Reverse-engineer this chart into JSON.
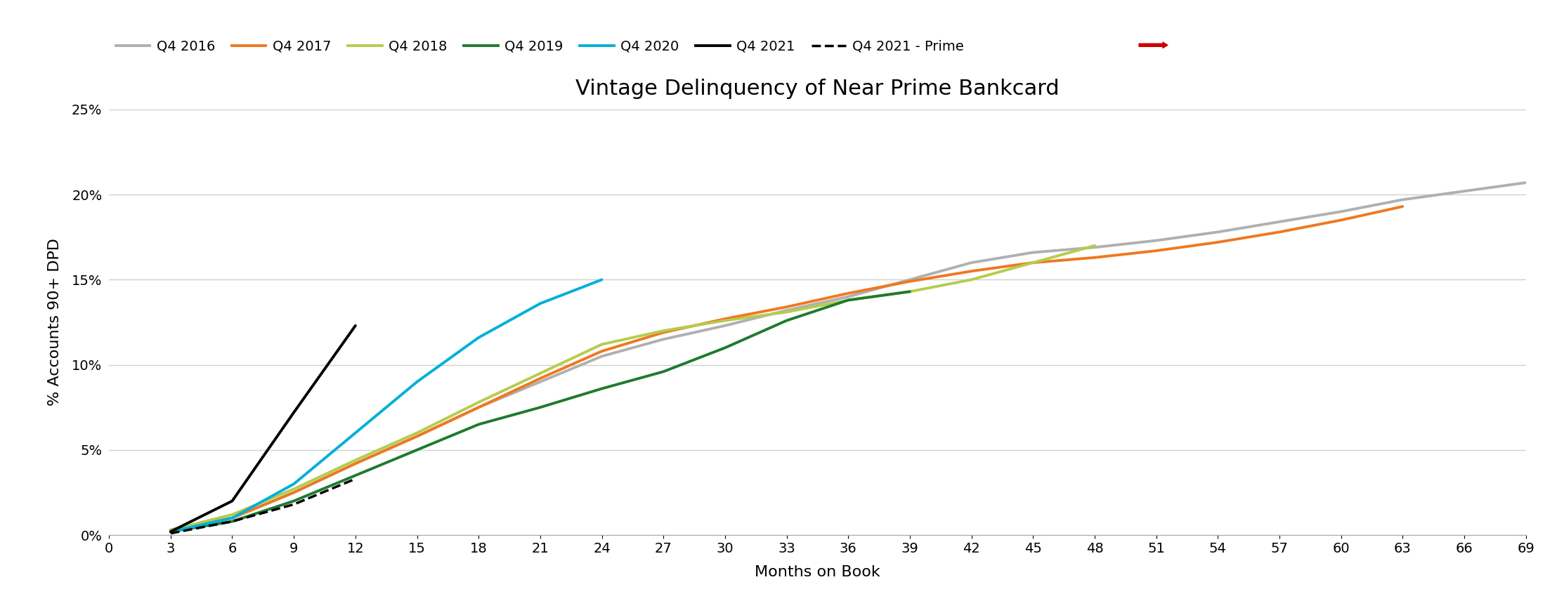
{
  "title": "Vintage Delinquency of Near Prime Bankcard",
  "xlabel": "Months on Book",
  "ylabel": "% Accounts 90+ DPD",
  "xlim": [
    0,
    69
  ],
  "ylim": [
    0,
    0.25
  ],
  "xticks": [
    0,
    3,
    6,
    9,
    12,
    15,
    18,
    21,
    24,
    27,
    30,
    33,
    36,
    39,
    42,
    45,
    48,
    51,
    54,
    57,
    60,
    63,
    66,
    69
  ],
  "yticks": [
    0,
    0.05,
    0.1,
    0.15,
    0.2,
    0.25
  ],
  "ytick_labels": [
    "0%",
    "5%",
    "10%",
    "15%",
    "20%",
    "25%"
  ],
  "series": {
    "Q4 2016": {
      "color": "#b0b0b0",
      "linestyle": "solid",
      "linewidth": 2.8,
      "x": [
        3,
        6,
        9,
        12,
        15,
        18,
        21,
        24,
        27,
        30,
        33,
        36,
        39,
        42,
        45,
        48,
        51,
        54,
        57,
        60,
        63,
        66,
        69
      ],
      "y": [
        0.003,
        0.01,
        0.025,
        0.042,
        0.058,
        0.075,
        0.09,
        0.105,
        0.115,
        0.123,
        0.132,
        0.14,
        0.15,
        0.16,
        0.166,
        0.169,
        0.173,
        0.178,
        0.184,
        0.19,
        0.197,
        0.202,
        0.207
      ]
    },
    "Q4 2017": {
      "color": "#f07820",
      "linestyle": "solid",
      "linewidth": 2.8,
      "x": [
        3,
        6,
        9,
        12,
        15,
        18,
        21,
        24,
        27,
        30,
        33,
        36,
        39,
        42,
        45,
        48,
        51,
        54,
        57,
        60,
        63
      ],
      "y": [
        0.003,
        0.01,
        0.025,
        0.042,
        0.058,
        0.075,
        0.092,
        0.108,
        0.119,
        0.127,
        0.134,
        0.142,
        0.149,
        0.155,
        0.16,
        0.163,
        0.167,
        0.172,
        0.178,
        0.185,
        0.193
      ]
    },
    "Q4 2018": {
      "color": "#b5cc4e",
      "linestyle": "solid",
      "linewidth": 2.8,
      "x": [
        3,
        6,
        9,
        12,
        15,
        18,
        21,
        24,
        27,
        30,
        33,
        36,
        39,
        42,
        45,
        48
      ],
      "y": [
        0.003,
        0.012,
        0.027,
        0.044,
        0.06,
        0.078,
        0.095,
        0.112,
        0.12,
        0.126,
        0.131,
        0.138,
        0.143,
        0.15,
        0.16,
        0.17
      ]
    },
    "Q4 2019": {
      "color": "#1e7b2e",
      "linestyle": "solid",
      "linewidth": 2.8,
      "x": [
        3,
        6,
        9,
        12,
        15,
        18,
        21,
        24,
        27,
        30,
        33,
        36,
        39
      ],
      "y": [
        0.002,
        0.008,
        0.02,
        0.035,
        0.05,
        0.065,
        0.075,
        0.086,
        0.096,
        0.11,
        0.126,
        0.138,
        0.143
      ]
    },
    "Q4 2020": {
      "color": "#00b0d8",
      "linestyle": "solid",
      "linewidth": 2.8,
      "x": [
        3,
        6,
        9,
        12,
        15,
        18,
        21,
        24
      ],
      "y": [
        0.002,
        0.01,
        0.03,
        0.06,
        0.09,
        0.116,
        0.136,
        0.15
      ]
    },
    "Q4 2021": {
      "color": "#000000",
      "linestyle": "solid",
      "linewidth": 2.8,
      "x": [
        3,
        6,
        9,
        12
      ],
      "y": [
        0.002,
        0.02,
        0.072,
        0.123
      ]
    },
    "Q4 2021 - Prime": {
      "color": "#000000",
      "linestyle": "dashed",
      "linewidth": 2.5,
      "x": [
        3,
        6,
        9,
        12
      ],
      "y": [
        0.001,
        0.008,
        0.018,
        0.033
      ]
    }
  },
  "legend_order": [
    "Q4 2016",
    "Q4 2017",
    "Q4 2018",
    "Q4 2019",
    "Q4 2020",
    "Q4 2021",
    "Q4 2021 - Prime"
  ],
  "arrow_color": "#cc0000",
  "background_color": "#ffffff",
  "grid_color": "#d0d0d0",
  "title_fontsize": 22,
  "axis_label_fontsize": 16,
  "tick_fontsize": 14,
  "legend_fontsize": 14
}
